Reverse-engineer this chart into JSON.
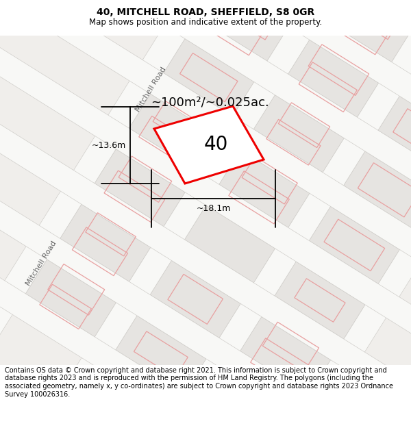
{
  "title": "40, MITCHELL ROAD, SHEFFIELD, S8 0GR",
  "subtitle": "Map shows position and indicative extent of the property.",
  "footer": "Contains OS data © Crown copyright and database right 2021. This information is subject to Crown copyright and database rights 2023 and is reproduced with the permission of HM Land Registry. The polygons (including the associated geometry, namely x, y co-ordinates) are subject to Crown copyright and database rights 2023 Ordnance Survey 100026316.",
  "property_label": "40",
  "area_label": "~100m²/~0.025ac.",
  "dim_label_h": "~13.6m",
  "dim_label_w": "~18.1m",
  "road_label": "Mitchell Road",
  "road_label2": "Mitchell Road",
  "map_bg": "#f0eeeb",
  "block_fc": "#e6e4e1",
  "block_ec": "#d0ceca",
  "road_fc": "#f8f8f6",
  "road_ec": "#d0ceca",
  "pink": "#e8a0a0",
  "prop_fc": "#ffffff",
  "prop_ec": "#ee0000",
  "title_fs": 10,
  "subtitle_fs": 8.5,
  "footer_fs": 7.0
}
